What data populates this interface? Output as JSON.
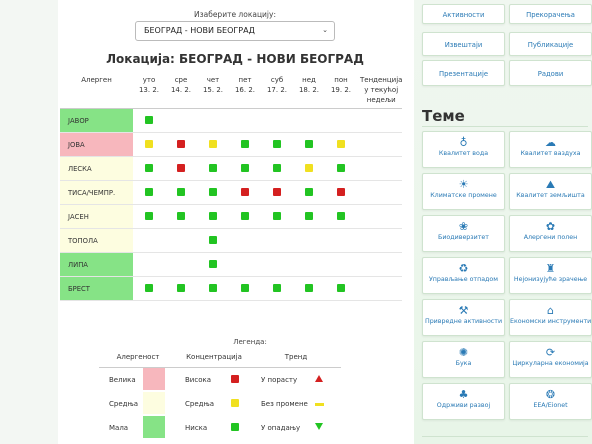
{
  "location": {
    "label": "Изаберите локацију:",
    "selected": "БЕОГРАД - НОВИ БЕОГРАД",
    "title": "Локација: БЕОГРАД - НОВИ БЕОГРАД"
  },
  "table": {
    "allergen_header": "Алерген",
    "trend_header": "Тенденција у текућој недељи",
    "days": [
      {
        "day": "уто",
        "date": "13. 2."
      },
      {
        "day": "сре",
        "date": "14. 2."
      },
      {
        "day": "чет",
        "date": "15. 2."
      },
      {
        "day": "пет",
        "date": "16. 2."
      },
      {
        "day": "суб",
        "date": "17. 2."
      },
      {
        "day": "нед",
        "date": "18. 2."
      },
      {
        "day": "пон",
        "date": "19. 2."
      }
    ],
    "rows": [
      {
        "name": "ЈАВОР",
        "level_color": "#86e386",
        "values": [
          "g",
          "",
          "",
          "",
          "",
          "",
          ""
        ]
      },
      {
        "name": "ЈОВА",
        "level_color": "#f7b7bd",
        "values": [
          "y",
          "r",
          "y",
          "g",
          "g",
          "g",
          "y"
        ]
      },
      {
        "name": "ЛЕСКА",
        "level_color": "#fdfde0",
        "values": [
          "g",
          "r",
          "g",
          "g",
          "g",
          "y",
          "g"
        ]
      },
      {
        "name": "ТИСА/ЧЕМПР.",
        "level_color": "#fdfde0",
        "values": [
          "g",
          "g",
          "g",
          "r",
          "r",
          "g",
          "r"
        ]
      },
      {
        "name": "ЈАСЕН",
        "level_color": "#fdfde0",
        "values": [
          "g",
          "g",
          "g",
          "g",
          "g",
          "g",
          "g"
        ]
      },
      {
        "name": "ТОПОЛА",
        "level_color": "#fdfde0",
        "values": [
          "",
          "",
          "g",
          "",
          "",
          "",
          ""
        ]
      },
      {
        "name": "ЛИПА",
        "level_color": "#86e386",
        "values": [
          "",
          "",
          "g",
          "",
          "",
          "",
          ""
        ]
      },
      {
        "name": "БРЕСТ",
        "level_color": "#86e386",
        "values": [
          "g",
          "g",
          "g",
          "g",
          "g",
          "g",
          "g"
        ]
      }
    ]
  },
  "legend": {
    "title": "Легенда:",
    "headers": [
      "Алергеност",
      "Концентрација",
      "Тренд"
    ],
    "rows": [
      {
        "allergenicity": "Велика",
        "swatch": "#f7b7bd",
        "concentration": "Висока",
        "sq": "r",
        "trend": "У порасту",
        "trend_icon": "up"
      },
      {
        "allergenicity": "Средња",
        "swatch": "#fdfde0",
        "concentration": "Средња",
        "sq": "y",
        "trend": "Без промене",
        "trend_icon": "flat"
      },
      {
        "allergenicity": "Мала",
        "swatch": "#86e386",
        "concentration": "Ниска",
        "sq": "g",
        "trend": "У опадању",
        "trend_icon": "down"
      }
    ]
  },
  "top_buttons": [
    {
      "label": "Активности"
    },
    {
      "label": "Прекорачења"
    },
    {
      "label": "Извештаји"
    },
    {
      "label": "Публикације"
    },
    {
      "label": "Презентације"
    },
    {
      "label": "Радови"
    }
  ],
  "themes": {
    "title": "Теме",
    "items": [
      {
        "label": "Квалитет вода",
        "icon": "water-drop-icon",
        "glyph": "♁"
      },
      {
        "label": "Квалитет ваздуха",
        "icon": "cloud-search-icon",
        "glyph": "☁"
      },
      {
        "label": "Климатске промене",
        "icon": "climate-icon",
        "glyph": "☀"
      },
      {
        "label": "Квалитет земљишта",
        "icon": "soil-icon",
        "glyph": "⛰"
      },
      {
        "label": "Биодиверзитет",
        "icon": "biodiversity-icon",
        "glyph": "❀"
      },
      {
        "label": "Алергени полен",
        "icon": "pollen-icon",
        "glyph": "✿"
      },
      {
        "label": "Управљање отпадом",
        "icon": "waste-icon",
        "glyph": "♻"
      },
      {
        "label": "Нејонизујуће зрачење",
        "icon": "radiation-tower-icon",
        "glyph": "♜"
      },
      {
        "label": "Привредне активности",
        "icon": "factory-icon",
        "glyph": "⚒"
      },
      {
        "label": "Економски инструменти",
        "icon": "bank-icon",
        "glyph": "⌂"
      },
      {
        "label": "Бука",
        "icon": "noise-icon",
        "glyph": "✺"
      },
      {
        "label": "Циркуларна економија",
        "icon": "circular-icon",
        "glyph": "⟳"
      },
      {
        "label": "Одрживи развој",
        "icon": "sustainable-icon",
        "glyph": "♣"
      },
      {
        "label": "EEA/Eionet",
        "icon": "eea-icon",
        "glyph": "❂"
      }
    ]
  }
}
